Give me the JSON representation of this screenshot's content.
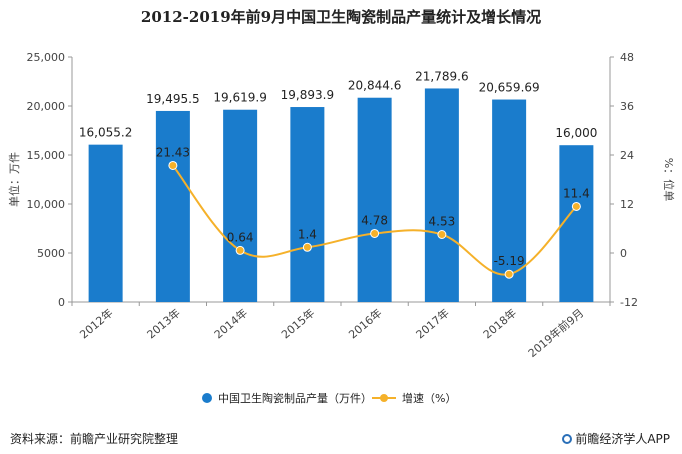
{
  "title": "2012-2019年前9月中国卫生陶瓷制品产量统计及增长情况",
  "source": "资料来源：前瞻产业研究院整理",
  "brand": "前瞻经济学人APP",
  "colors": {
    "bar": "#1a7ccc",
    "line": "#f5b12a",
    "axis": "#999999"
  },
  "chart_data": {
    "type": "bar",
    "categories": [
      "2012年",
      "2013年",
      "2014年",
      "2015年",
      "2016年",
      "2017年",
      "2018年",
      "2019年前9月"
    ],
    "series": [
      {
        "name": "中国卫生陶瓷制品产量（万件）",
        "type": "bar",
        "axis": "left",
        "values": [
          16055.2,
          19495.5,
          19619.9,
          19893.9,
          20844.6,
          21789.6,
          20659.69,
          16000
        ],
        "labels": [
          "16,055.2",
          "19,495.5",
          "19,619.9",
          "19,893.9",
          "20,844.6",
          "21,789.6",
          "20,659.69",
          "16,000"
        ]
      },
      {
        "name": "增速（%）",
        "type": "line",
        "axis": "right",
        "values": [
          null,
          21.43,
          0.64,
          1.4,
          4.78,
          4.53,
          -5.19,
          11.4
        ],
        "labels": [
          "",
          "21.43",
          "0.64",
          "1.4",
          "4.78",
          "4.53",
          "-5.19",
          "11.4"
        ]
      }
    ],
    "ylabel": "单位：万件",
    "y2label": "%：位单",
    "ylim": [
      0,
      25000
    ],
    "y2lim": [
      -12,
      48
    ],
    "yticks": [
      "0",
      "5000",
      "10,000",
      "15,000",
      "20,000",
      "25,000"
    ],
    "y2ticks": [
      "-12",
      "0",
      "12",
      "24",
      "36",
      "48"
    ],
    "legend": "bottom"
  }
}
